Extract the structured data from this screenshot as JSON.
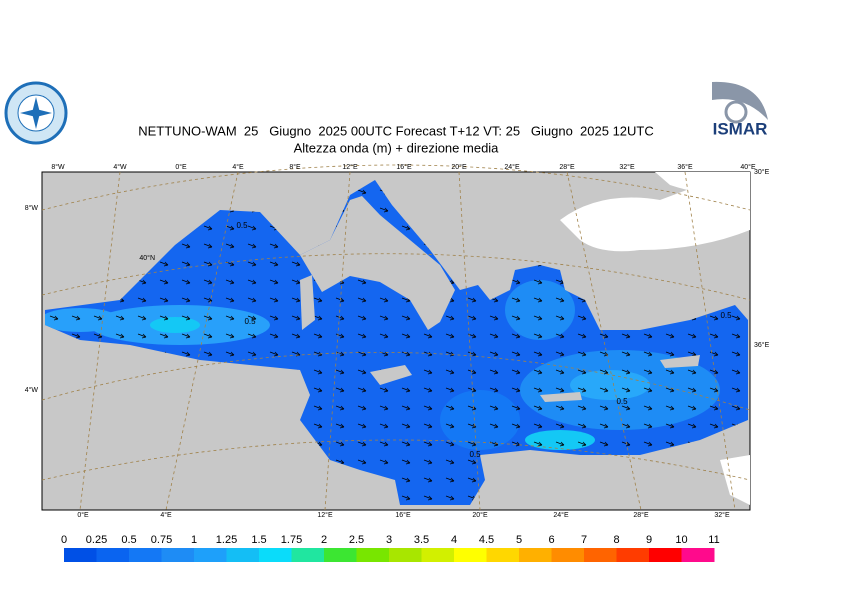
{
  "header": {
    "title": "NETTUNO-WAM  25   Giugno  2025 00UTC Forecast T+12 VT: 25   Giugno  2025 12UTC",
    "subtitle": "Altezza onda (m) + direzione media",
    "logo_text": "ISMAR"
  },
  "map": {
    "top_labels": [
      "8°W",
      "4°W",
      "0°E",
      "4°E",
      "8°E",
      "12°E",
      "16°E",
      "20°E",
      "24°E",
      "28°E",
      "32°E",
      "36°E",
      "40°E"
    ],
    "left_labels": [
      "8°W",
      "40°N",
      "4°W"
    ],
    "right_labels": [
      "30°E",
      "36°E"
    ],
    "bottom_labels": [
      "0°E",
      "4°E",
      "12°E",
      "16°E",
      "20°E",
      "24°E",
      "28°E",
      "32°E"
    ],
    "contour_labels": [
      "0.5",
      "0.5",
      "0.5",
      "0.5",
      "0.5"
    ]
  },
  "legend": {
    "labels": [
      "0",
      "0.25",
      "0.5",
      "0.75",
      "1",
      "1.25",
      "1.5",
      "1.75",
      "2",
      "2.5",
      "3",
      "3.5",
      "4",
      "4.5",
      "5",
      "6",
      "7",
      "8",
      "9",
      "10",
      "11"
    ],
    "colors": [
      "#0050e6",
      "#0a64f0",
      "#1478f5",
      "#1e8cf5",
      "#1ea0fa",
      "#14bef5",
      "#0adcfa",
      "#20e6a0",
      "#3ce632",
      "#78e600",
      "#a8e600",
      "#d2f000",
      "#ffff00",
      "#ffd700",
      "#ffb000",
      "#ff8c00",
      "#ff6400",
      "#ff3c00",
      "#ff0000",
      "#ff0a8c"
    ]
  }
}
